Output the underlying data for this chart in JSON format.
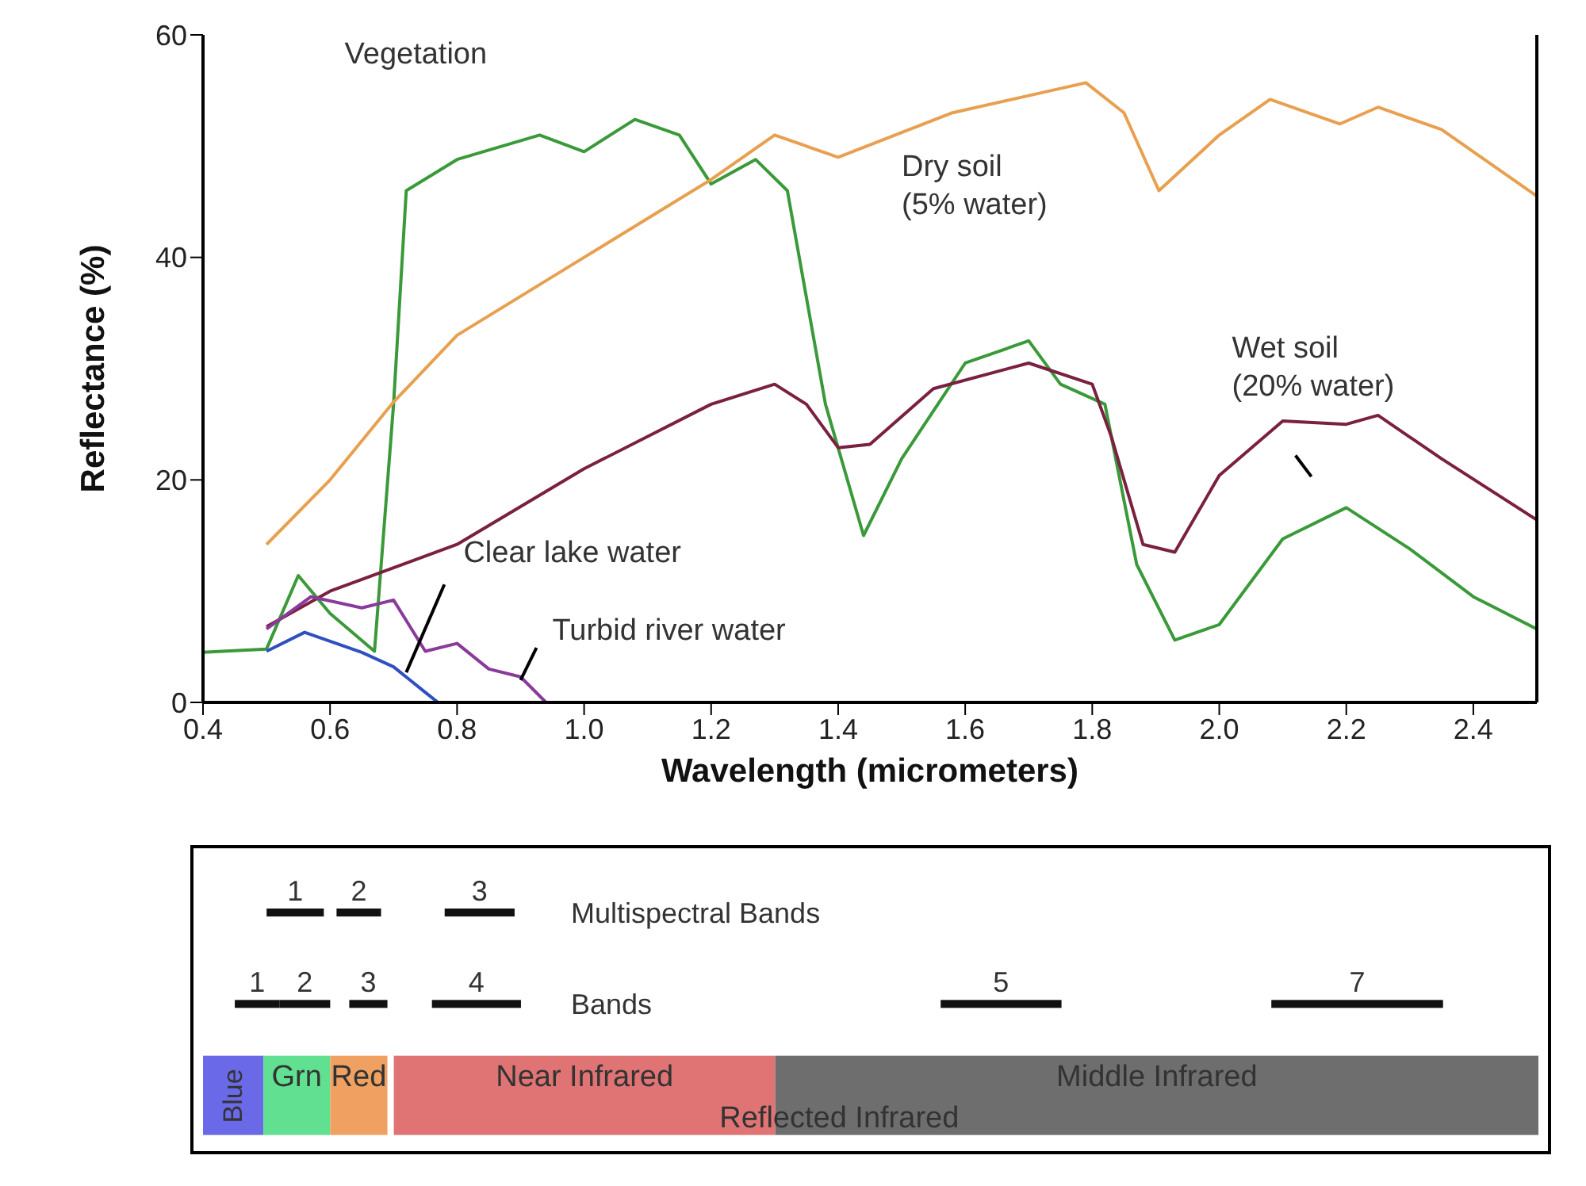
{
  "chart_data": [
    {
      "type": "line",
      "xlabel": "Wavelength (micrometers)",
      "ylabel": "Reflectance (%)",
      "xlim": [
        0.4,
        2.5
      ],
      "xticks": [
        0.4,
        0.6,
        0.8,
        {
          "value": 1,
          "label": "1.0"
        },
        1.2,
        1.4,
        1.6,
        1.8,
        {
          "value": 2,
          "label": "2.0"
        },
        2.2,
        2.4
      ],
      "ylim": [
        0,
        60
      ],
      "yticks": [
        0,
        20,
        40,
        60
      ],
      "series": [
        {
          "name": "Vegetation",
          "color": "#3a9a3a",
          "x": [
            0.4,
            0.5,
            0.55,
            0.6,
            0.67,
            0.7,
            0.72,
            0.8,
            0.93,
            1.0,
            1.08,
            1.15,
            1.2,
            1.27,
            1.32,
            1.38,
            1.44,
            1.5,
            1.6,
            1.7,
            1.75,
            1.82,
            1.87,
            1.93,
            2.0,
            2.1,
            2.2,
            2.3,
            2.4,
            2.5
          ],
          "values": [
            4.5,
            4.8,
            11.4,
            8,
            4.6,
            26.8,
            46,
            48.8,
            51,
            49.5,
            52.4,
            51,
            46.6,
            48.8,
            46,
            26.8,
            15,
            21.9,
            30.5,
            32.5,
            28.6,
            26.8,
            12.4,
            5.6,
            7,
            14.7,
            17.5,
            13.8,
            9.5,
            6.6
          ]
        },
        {
          "name": "Dry soil (5% water)",
          "color": "#e8a050",
          "x": [
            0.5,
            0.6,
            0.7,
            0.8,
            1.0,
            1.2,
            1.3,
            1.4,
            1.58,
            1.79,
            1.85,
            1.905,
            2.0,
            2.08,
            2.19,
            2.25,
            2.35,
            2.5
          ],
          "values": [
            14.2,
            20,
            27,
            33,
            40,
            47,
            51,
            49,
            53,
            55.7,
            53,
            46,
            51,
            54.2,
            52,
            53.5,
            51.5,
            45.5
          ]
        },
        {
          "name": "Wet soil (20% water)",
          "color": "#7a2040",
          "x": [
            0.5,
            0.6,
            0.8,
            1.0,
            1.2,
            1.3,
            1.35,
            1.4,
            1.45,
            1.55,
            1.7,
            1.8,
            1.83,
            1.88,
            1.93,
            2.0,
            2.1,
            2.2,
            2.25,
            2.35,
            2.5
          ],
          "values": [
            6.8,
            10,
            14.2,
            21,
            26.8,
            28.6,
            26.8,
            22.9,
            23.2,
            28.2,
            30.5,
            28.6,
            23.9,
            14.2,
            13.5,
            20.4,
            25.3,
            25,
            25.8,
            21.9,
            16.4
          ]
        },
        {
          "name": "Clear lake water",
          "color": "#3050c0",
          "x": [
            0.5,
            0.56,
            0.65,
            0.7,
            0.75,
            0.77
          ],
          "values": [
            4.6,
            6.3,
            4.5,
            3.2,
            0.9,
            0
          ]
        },
        {
          "name": "Turbid river water",
          "color": "#8a3a9a",
          "x": [
            0.5,
            0.57,
            0.65,
            0.7,
            0.75,
            0.8,
            0.85,
            0.9,
            0.94
          ],
          "values": [
            6.6,
            9.5,
            8.5,
            9.2,
            4.6,
            5.3,
            3,
            2.3,
            0
          ]
        }
      ]
    },
    {
      "type": "bar",
      "orientation": "horizontal",
      "tick_labels": false,
      "xlim": [
        0.4,
        2.5
      ],
      "categories": [
        "Multispectral Bands",
        "Bands",
        null
      ],
      "annotations": [
        {
          "text": "1",
          "x": 0.545,
          "y": "Multispectral Bands"
        },
        {
          "text": "2",
          "x": 0.645,
          "y": "Multispectral Bands"
        },
        {
          "text": "3",
          "x": 0.835,
          "y": "Multispectral Bands"
        },
        {
          "text": "1",
          "x": 0.485,
          "y": "Bands"
        },
        {
          "text": "2",
          "x": 0.56,
          "y": "Bands"
        },
        {
          "text": "3",
          "x": 0.66,
          "y": "Bands"
        },
        {
          "text": "4",
          "x": 0.83,
          "y": "Bands"
        },
        {
          "text": "5",
          "x": 1.655,
          "y": "Bands"
        },
        {
          "text": "7",
          "x": 2.215,
          "y": "Bands"
        },
        "Blue",
        "Grn",
        "Red",
        "Near Infrared",
        "Middle Infrared",
        "Reflected Infrared"
      ],
      "series": [
        {
          "base": [
            0.5,
            0.45,
            0.4
          ],
          "values": [
            0.09,
            0.07,
            0.095
          ],
          "colors": [
            "#111111",
            "#111111",
            "#6a6ae8"
          ]
        },
        {
          "base": [
            0.61,
            0.52,
            0.495
          ],
          "values": [
            0.07,
            0.08,
            0.105
          ],
          "colors": [
            "#111111",
            "#111111",
            "#60e090"
          ]
        },
        {
          "base": [
            0.78,
            0.63,
            0.6
          ],
          "values": [
            0.11,
            0.06,
            0.09
          ],
          "colors": [
            "#111111",
            "#111111",
            "#f0a060"
          ]
        },
        {
          "base": [
            null,
            0.76,
            0.7
          ],
          "values": [
            null,
            0.14,
            0.6
          ],
          "colors": [
            null,
            "#111111",
            "#e07474"
          ]
        },
        {
          "base": [
            null,
            1.56,
            1.3
          ],
          "values": [
            null,
            0.19,
            1.2
          ],
          "colors": [
            null,
            "#111111",
            "#6e6e6e"
          ]
        },
        {
          "base": [
            null,
            2.08,
            null
          ],
          "values": [
            null,
            0.27,
            null
          ],
          "colors": [
            null,
            "#111111",
            null
          ]
        }
      ]
    }
  ]
}
